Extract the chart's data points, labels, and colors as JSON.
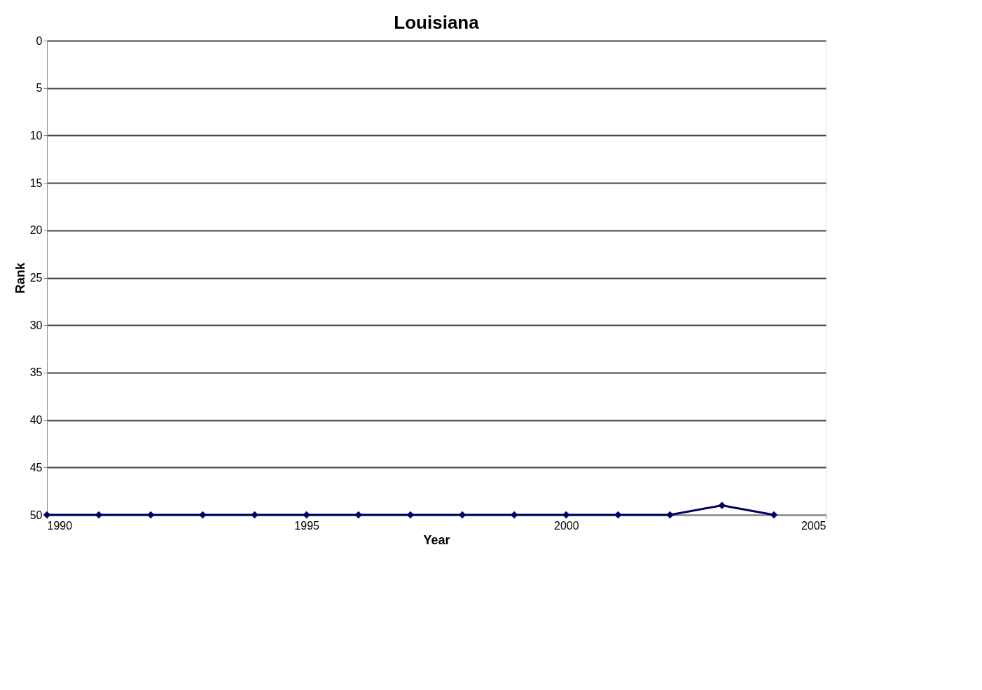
{
  "chart_data": {
    "type": "line",
    "title": "Louisiana",
    "xlabel": "Year",
    "ylabel": "Rank",
    "x": [
      1990,
      1991,
      1992,
      1993,
      1994,
      1995,
      1996,
      1997,
      1998,
      1999,
      2000,
      2001,
      2002,
      2003,
      2004
    ],
    "series": [
      {
        "color": "#000066",
        "values": [
          50,
          50,
          50,
          50,
          50,
          50,
          50,
          50,
          50,
          50,
          50,
          50,
          50,
          49,
          50
        ]
      }
    ],
    "xlim": [
      1990,
      2005
    ],
    "xticks": [
      1990,
      1995,
      2000,
      2005
    ],
    "ylim": [
      50,
      0
    ],
    "yticks": [
      0,
      5,
      10,
      15,
      20,
      25,
      30,
      35,
      40,
      45,
      50
    ],
    "grid": "y",
    "marker": "diamond",
    "line_style": "solid",
    "legend": false
  }
}
